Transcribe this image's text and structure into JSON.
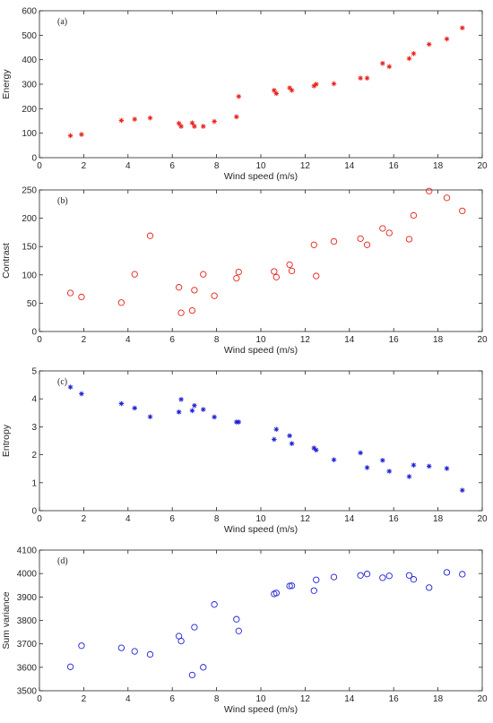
{
  "chart_data": [
    {
      "type": "scatter",
      "panel_label": "(a)",
      "xlabel": "Wind speed (m/s)",
      "ylabel": "Energy",
      "xlim": [
        0,
        20
      ],
      "ylim": [
        0,
        600
      ],
      "xticks": [
        "0",
        "2",
        "4",
        "6",
        "8",
        "10",
        "12",
        "14",
        "16",
        "18",
        "20"
      ],
      "yticks": [
        "0",
        "100",
        "200",
        "300",
        "400",
        "500",
        "600"
      ],
      "grid": false,
      "marker": "asterisk",
      "color": "#e8201a",
      "x": [
        1.4,
        1.9,
        3.7,
        4.3,
        5.0,
        6.3,
        6.4,
        6.9,
        7.0,
        7.4,
        7.9,
        8.9,
        9.0,
        10.6,
        10.7,
        11.3,
        11.4,
        12.4,
        12.5,
        13.3,
        14.5,
        14.8,
        15.5,
        15.8,
        16.7,
        16.9,
        17.6,
        18.4,
        19.1
      ],
      "y": [
        90,
        95,
        152,
        157,
        162,
        140,
        128,
        142,
        128,
        128,
        148,
        167,
        250,
        275,
        262,
        285,
        275,
        293,
        300,
        302,
        325,
        325,
        385,
        372,
        405,
        425,
        463,
        485,
        530
      ]
    },
    {
      "type": "scatter",
      "panel_label": "(b)",
      "xlabel": "Wind speed (m/s)",
      "ylabel": "Contrast",
      "xlim": [
        0,
        20
      ],
      "ylim": [
        0,
        250
      ],
      "xticks": [
        "0",
        "2",
        "4",
        "6",
        "8",
        "10",
        "12",
        "14",
        "16",
        "18",
        "20"
      ],
      "yticks": [
        "0",
        "50",
        "100",
        "150",
        "200",
        "250"
      ],
      "grid": false,
      "marker": "circle",
      "color": "#e8201a",
      "x": [
        1.4,
        1.9,
        3.7,
        4.3,
        5.0,
        6.3,
        6.4,
        6.9,
        7.0,
        7.4,
        7.9,
        8.9,
        9.0,
        10.6,
        10.7,
        11.3,
        11.4,
        12.4,
        12.5,
        13.3,
        14.5,
        14.8,
        15.5,
        15.8,
        16.7,
        16.9,
        17.6,
        18.4,
        19.1
      ],
      "y": [
        68,
        61,
        51,
        101,
        169,
        78,
        33,
        37,
        73,
        101,
        63,
        94,
        105,
        106,
        96,
        118,
        107,
        153,
        98,
        159,
        164,
        153,
        182,
        174,
        163,
        205,
        248,
        236,
        213
      ]
    },
    {
      "type": "scatter",
      "panel_label": "(c)",
      "xlabel": "Wind speed (m/s)",
      "ylabel": "Entropy",
      "xlim": [
        0,
        20
      ],
      "ylim": [
        0,
        5
      ],
      "xticks": [
        "0",
        "2",
        "4",
        "6",
        "8",
        "10",
        "12",
        "14",
        "16",
        "18",
        "20"
      ],
      "yticks": [
        "0",
        "1",
        "2",
        "3",
        "4",
        "5"
      ],
      "grid": false,
      "marker": "asterisk",
      "color": "#1f1fd6",
      "x": [
        1.4,
        1.9,
        3.7,
        4.3,
        5.0,
        6.3,
        6.4,
        6.9,
        7.0,
        7.4,
        7.9,
        8.9,
        9.0,
        10.6,
        10.7,
        11.3,
        11.4,
        12.4,
        12.5,
        13.3,
        14.5,
        14.8,
        15.5,
        15.8,
        16.7,
        16.9,
        17.6,
        18.4,
        19.1
      ],
      "y": [
        4.42,
        4.18,
        3.83,
        3.67,
        3.36,
        3.53,
        3.98,
        3.58,
        3.76,
        3.62,
        3.35,
        3.17,
        3.17,
        2.55,
        2.91,
        2.68,
        2.4,
        2.24,
        2.17,
        1.82,
        2.07,
        1.54,
        1.8,
        1.41,
        1.22,
        1.63,
        1.59,
        1.51,
        0.73
      ]
    },
    {
      "type": "scatter",
      "panel_label": "(d)",
      "xlabel": "Wind speed (m/s)",
      "ylabel": "Sum variance",
      "xlim": [
        0,
        20
      ],
      "ylim": [
        3500,
        4100
      ],
      "xticks": [
        "0",
        "2",
        "4",
        "6",
        "8",
        "10",
        "12",
        "14",
        "16",
        "18",
        "20"
      ],
      "yticks": [
        "3500",
        "3600",
        "3700",
        "3800",
        "3900",
        "4000",
        "4100"
      ],
      "grid": false,
      "marker": "circle",
      "color": "#1f1fd6",
      "x": [
        1.4,
        1.9,
        3.7,
        4.3,
        5.0,
        6.3,
        6.4,
        6.9,
        7.0,
        7.4,
        7.9,
        8.9,
        9.0,
        10.6,
        10.7,
        11.3,
        11.4,
        12.4,
        12.5,
        13.3,
        14.5,
        14.8,
        15.5,
        15.8,
        16.7,
        16.9,
        17.6,
        18.4,
        19.1
      ],
      "y": [
        3602,
        3692,
        3683,
        3668,
        3655,
        3733,
        3712,
        3567,
        3771,
        3600,
        3868,
        3805,
        3755,
        3913,
        3917,
        3947,
        3948,
        3927,
        3973,
        3985,
        3992,
        3998,
        3982,
        3990,
        3992,
        3975,
        3940,
        4005,
        3997
      ]
    }
  ]
}
